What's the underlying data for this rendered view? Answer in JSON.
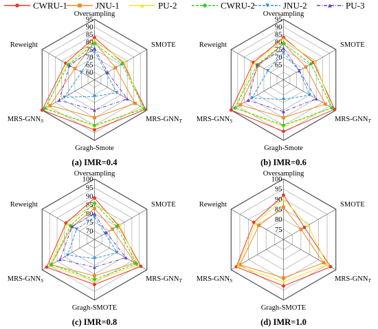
{
  "legend": [
    {
      "name": "CWRU-1",
      "color": "#e8352e",
      "dash": "solid",
      "marker": "circle"
    },
    {
      "name": "JNU-1",
      "color": "#f08a24",
      "dash": "solid",
      "marker": "square"
    },
    {
      "name": "PU-2",
      "color": "#f4e526",
      "dash": "solid",
      "marker": "triangle"
    },
    {
      "name": "CWRU-2",
      "color": "#2ecc2e",
      "dash": "dash",
      "marker": "diamond"
    },
    {
      "name": "JNU-2",
      "color": "#2e8fe0",
      "dash": "dash",
      "marker": "triangle-down"
    },
    {
      "name": "PU-3",
      "color": "#6a3fc2",
      "dash": "dashdot",
      "marker": "triangle"
    }
  ],
  "chart_data": [
    {
      "type": "radar",
      "caption": "(a) IMR=0.4",
      "axes": [
        "Oversampling",
        "SMOTE",
        "MRS-GNN_T",
        "Gragh-Smote",
        "MRS-GNN_S",
        "Reweight"
      ],
      "rmin": 55,
      "rmax": 95,
      "ticks": [
        60,
        65,
        70,
        75,
        80,
        85,
        90,
        95
      ],
      "series": [
        {
          "name": "CWRU-1",
          "values": [
            83,
            77,
            94,
            88,
            95,
            77
          ]
        },
        {
          "name": "JNU-1",
          "values": [
            80,
            71,
            86,
            80,
            89,
            70
          ]
        },
        {
          "name": "PU-2",
          "values": [
            81,
            78,
            92,
            86,
            92,
            76
          ]
        },
        {
          "name": "CWRU-2",
          "values": [
            79,
            76,
            93,
            85,
            93,
            75
          ]
        },
        {
          "name": "JNU-2",
          "values": [
            74,
            64,
            72,
            66,
            78,
            65
          ]
        },
        {
          "name": "PU-3",
          "values": [
            76,
            65,
            80,
            75,
            82,
            74
          ]
        }
      ]
    },
    {
      "type": "radar",
      "caption": "(b) IMR=0.6",
      "axes": [
        "Oversampling",
        "SMOTE",
        "MRS-GNN_T",
        "Gragh-Smote",
        "MRS-GNN_S",
        "Reweight"
      ],
      "rmin": 55,
      "rmax": 95,
      "ticks": [
        65,
        70,
        75,
        80,
        85,
        90,
        95
      ],
      "series": [
        {
          "name": "CWRU-1",
          "values": [
            83,
            78,
            94,
            89,
            95,
            78
          ]
        },
        {
          "name": "JNU-1",
          "values": [
            79,
            72,
            87,
            80,
            88,
            74
          ]
        },
        {
          "name": "PU-2",
          "values": [
            82,
            79,
            92,
            86,
            92,
            77
          ]
        },
        {
          "name": "CWRU-2",
          "values": [
            79,
            76,
            92,
            85,
            92,
            75
          ]
        },
        {
          "name": "JNU-2",
          "values": [
            73,
            67,
            75,
            68,
            79,
            67
          ]
        },
        {
          "name": "PU-3",
          "values": [
            76,
            67,
            80,
            76,
            82,
            75
          ]
        }
      ]
    },
    {
      "type": "radar",
      "caption": "(c) IMR=0.8",
      "axes": [
        "Oversampling",
        "SMOTE",
        "MRS-GNN_T",
        "Gragh-SMOTE",
        "MRS-GNN_S",
        "Reweight"
      ],
      "rmin": 65,
      "rmax": 100,
      "ticks": [
        70,
        75,
        80,
        85,
        90,
        95,
        100
      ],
      "series": [
        {
          "name": "CWRU-1",
          "values": [
            89,
            81,
            96,
            91,
            97,
            84
          ]
        },
        {
          "name": "JNU-1",
          "values": [
            83,
            77,
            92,
            86,
            94,
            80
          ]
        },
        {
          "name": "PU-2",
          "values": [
            87,
            82,
            94,
            89,
            95,
            83
          ]
        },
        {
          "name": "CWRU-2",
          "values": [
            86,
            80,
            93,
            88,
            94,
            81
          ]
        },
        {
          "name": "JNU-2",
          "values": [
            78,
            72,
            80,
            76,
            83,
            77
          ]
        },
        {
          "name": "PU-3",
          "values": [
            80,
            73,
            86,
            81,
            88,
            80
          ]
        }
      ]
    },
    {
      "type": "radar",
      "caption": "(d) IMR=1.0",
      "axes": [
        "Oversampling",
        "SMOTE",
        "MRS-GNN_T",
        "Gragh-SMOTE",
        "MRS-GNN_S",
        "Reweight"
      ],
      "rmin": 70,
      "rmax": 100,
      "ticks": [
        75,
        80,
        85,
        90,
        95,
        100
      ],
      "series": [
        {
          "name": "CWRU-1",
          "values": [
            92,
            82,
            97,
            93,
            97,
            87
          ]
        },
        {
          "name": "JNU-1",
          "values": [
            86,
            80,
            93,
            89,
            95,
            84
          ]
        },
        {
          "name": "PU-2",
          "values": [
            90,
            84,
            95,
            91,
            96,
            86
          ]
        }
      ]
    }
  ]
}
